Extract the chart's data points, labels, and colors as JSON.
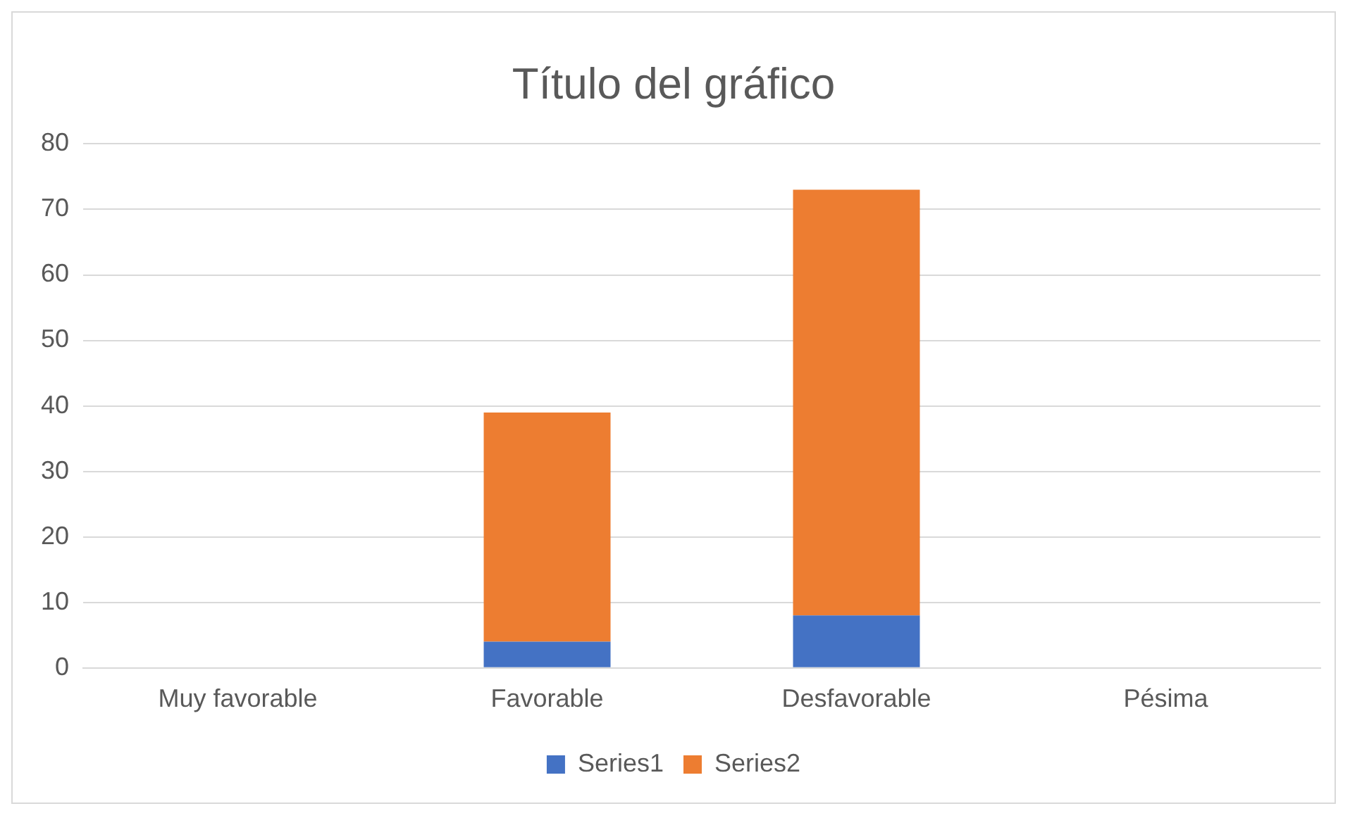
{
  "chart_data": {
    "type": "bar",
    "title": "Título del gráfico",
    "categories": [
      "Muy favorable",
      "Favorable",
      "Desfavorable",
      "Pésima"
    ],
    "series": [
      {
        "name": "Series1",
        "color": "#4472c4",
        "values": [
          0,
          4,
          8,
          0
        ]
      },
      {
        "name": "Series2",
        "color": "#ed7d31",
        "values": [
          0,
          35,
          65,
          0
        ]
      }
    ],
    "stacked": true,
    "ylim": [
      0,
      80
    ],
    "yticks": [
      0,
      10,
      20,
      30,
      40,
      50,
      60,
      70,
      80
    ],
    "grid": "y",
    "legend": "bottom"
  }
}
